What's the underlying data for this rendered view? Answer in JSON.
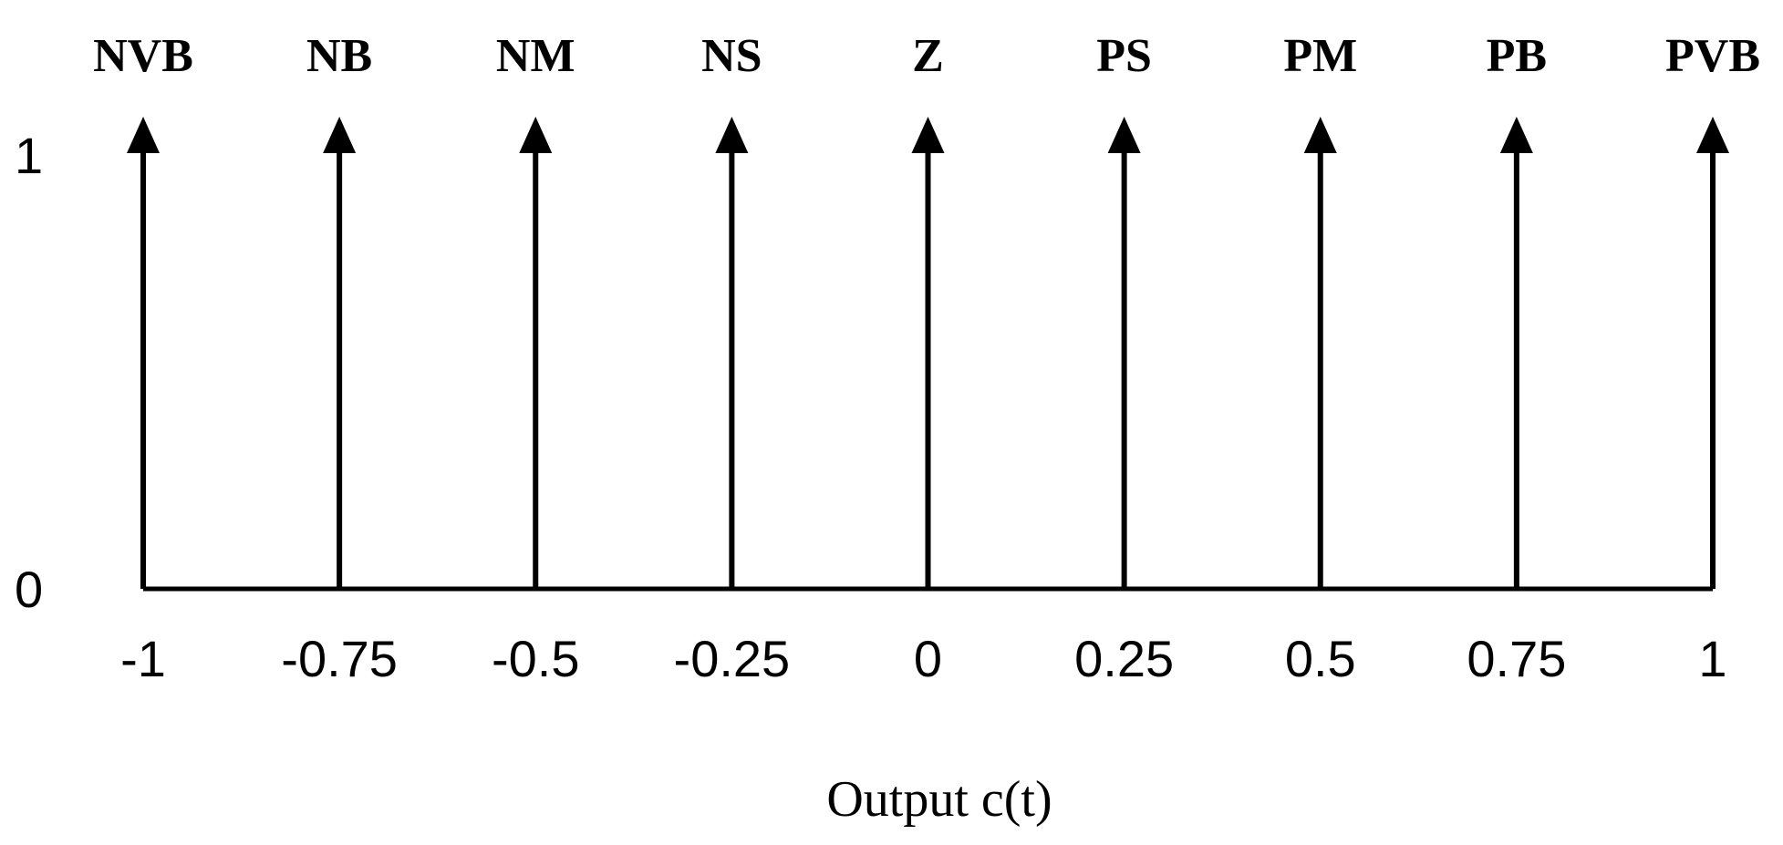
{
  "chart_data": {
    "type": "singleton",
    "xlabel": "Output c(t)",
    "ylabel": "",
    "title": "",
    "xlim": [
      -1,
      1
    ],
    "ylim": [
      0,
      1
    ],
    "y_ticks": [
      "0",
      "1"
    ],
    "grid": false,
    "line_color": "#000000",
    "series": [
      {
        "name": "NVB",
        "x": -1,
        "x_label": "-1",
        "y": 1
      },
      {
        "name": "NB",
        "x": -0.75,
        "x_label": "-0.75",
        "y": 1
      },
      {
        "name": "NM",
        "x": -0.5,
        "x_label": "-0.5",
        "y": 1
      },
      {
        "name": "NS",
        "x": -0.25,
        "x_label": "-0.25",
        "y": 1
      },
      {
        "name": "Z",
        "x": 0,
        "x_label": "0",
        "y": 1
      },
      {
        "name": "PS",
        "x": 0.25,
        "x_label": "0.25",
        "y": 1
      },
      {
        "name": "PM",
        "x": 0.5,
        "x_label": "0.5",
        "y": 1
      },
      {
        "name": "PB",
        "x": 0.75,
        "x_label": "0.75",
        "y": 1
      },
      {
        "name": "PVB",
        "x": 1,
        "x_label": "1",
        "y": 1
      }
    ]
  }
}
